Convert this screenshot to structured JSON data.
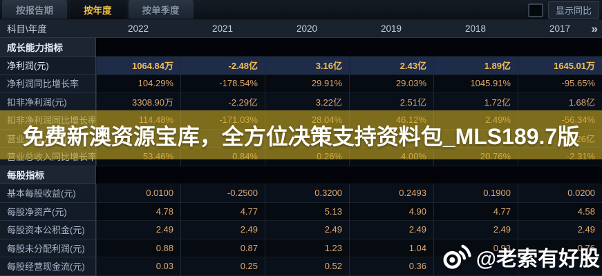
{
  "tabs": [
    {
      "label": "按报告期",
      "active": false
    },
    {
      "label": "按年度",
      "active": true
    },
    {
      "label": "按单季度",
      "active": false
    }
  ],
  "toolbar": {
    "show_yoy_label": "显示同比",
    "checkbox_checked": false
  },
  "table": {
    "corner_label": "科目\\年度",
    "years": [
      "2022",
      "2021",
      "2020",
      "2019",
      "2018",
      "2017"
    ],
    "more_icon": "»",
    "sections": [
      {
        "title": "成长能力指标",
        "rows": [
          {
            "label": "净利润(元)",
            "highlight": true,
            "values": [
              "1064.84万",
              "-2.48亿",
              "3.16亿",
              "2.43亿",
              "1.89亿",
              "1645.01万"
            ]
          },
          {
            "label": "净利润同比增长率",
            "values": [
              "104.29%",
              "-178.54%",
              "29.91%",
              "29.03%",
              "1045.91%",
              "-95.65%"
            ]
          },
          {
            "label": "扣非净利润(元)",
            "values": [
              "3308.90万",
              "-2.29亿",
              "3.22亿",
              "2.51亿",
              "1.72亿",
              "1.68亿"
            ]
          },
          {
            "label": "扣非净利润同比增长率",
            "values": [
              "114.48%",
              "-171.03%",
              "28.04%",
              "46.12%",
              "2.49%",
              "-56.34%"
            ]
          },
          {
            "label": "营业总收入(元)",
            "values": [
              "",
              "",
              "",
              "",
              "",
              "21.26亿"
            ]
          },
          {
            "label": "营业总收入同比增长率",
            "values": [
              "53.46%",
              "0.84%",
              "0.26%",
              "4.00%",
              "20.76%",
              "-2.31%"
            ]
          }
        ]
      },
      {
        "title": "每股指标",
        "rows": [
          {
            "label": "基本每股收益(元)",
            "values": [
              "0.0100",
              "-0.2500",
              "0.3200",
              "0.2493",
              "0.1900",
              "0.0200"
            ]
          },
          {
            "label": "每股净资产(元)",
            "values": [
              "4.78",
              "4.77",
              "5.13",
              "4.90",
              "4.77",
              "4.58"
            ]
          },
          {
            "label": "每股资本公积金(元)",
            "values": [
              "2.49",
              "2.49",
              "2.49",
              "2.49",
              "2.49",
              "2.49"
            ]
          },
          {
            "label": "每股未分配利润(元)",
            "values": [
              "0.88",
              "0.87",
              "1.23",
              "1.04",
              "0.93",
              "0.76"
            ]
          },
          {
            "label": "每股经营现金流(元)",
            "values": [
              "0.03",
              "0.25",
              "0.52",
              "0.36",
              "",
              ""
            ]
          }
        ]
      }
    ]
  },
  "watermarks": {
    "banner_text": "免费新澳资源宝库，全方位决策支持资料包_MLS189.7版",
    "credit_text": "@老索有好股",
    "credit_icon": "weibo-icon"
  },
  "colors": {
    "accent_gold": "#f4c447",
    "value_orange": "#dfa86e",
    "highlight_value": "#f2be55",
    "banner_overlay": "rgba(203,173,36,0.60)"
  }
}
